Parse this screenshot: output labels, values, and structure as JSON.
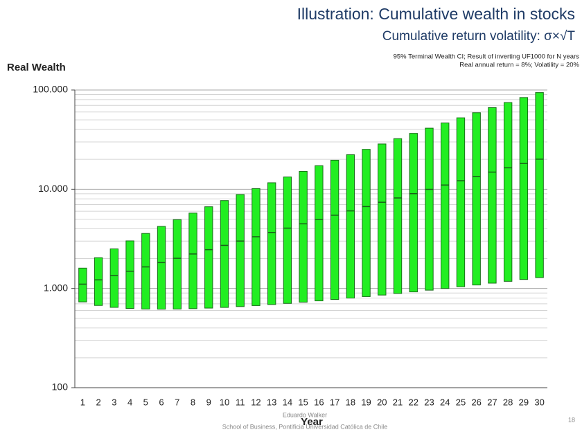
{
  "chart_data": {
    "type": "range_bar",
    "title": "Illustration: Cumulative wealth in stocks",
    "subtitle": "Cumulative return volatility: σ×√T",
    "notes": [
      "95% Terminal Wealth CI; Result of inverting UF1000 for N years",
      "Real annual return = 8%; Volatility = 20%"
    ],
    "ylabel": "Real Wealth",
    "xlabel": "Year",
    "footer": [
      "Eduardo Walker",
      "School of Business, Pontificia Universidad Católica de Chile"
    ],
    "page_number": "18",
    "categories": [
      "1",
      "2",
      "3",
      "4",
      "5",
      "6",
      "7",
      "8",
      "9",
      "10",
      "11",
      "12",
      "13",
      "14",
      "15",
      "16",
      "17",
      "18",
      "19",
      "20",
      "21",
      "22",
      "23",
      "24",
      "25",
      "26",
      "27",
      "28",
      "29",
      "30"
    ],
    "low": [
      732,
      674,
      645,
      629,
      621,
      619,
      621,
      626,
      634,
      644,
      657,
      672,
      689,
      707,
      728,
      750,
      774,
      800,
      828,
      858,
      890,
      924,
      961,
      1000,
      1041,
      1084,
      1131,
      1180,
      1232,
      1288
    ],
    "mid": [
      1105,
      1221,
      1350,
      1492,
      1649,
      1822,
      2014,
      2226,
      2460,
      2718,
      3004,
      3320,
      3669,
      4055,
      4482,
      4953,
      5474,
      6050,
      6686,
      7389,
      8166,
      9025,
      9974,
      11023,
      12182,
      13464,
      14880,
      16445,
      18174,
      20086
    ],
    "high": [
      1603,
      2043,
      2507,
      3016,
      3584,
      4221,
      4938,
      5749,
      6659,
      7690,
      8846,
      10155,
      11624,
      13290,
      15150,
      17255,
      19610,
      22265,
      25250,
      28590,
      32330,
      36550,
      41260,
      46530,
      52460,
      59080,
      66490,
      74740,
      84000,
      94350
    ],
    "color": "#22ee22",
    "edge_color": "#1a6e1a",
    "log_scale": true,
    "grid": true,
    "ylim": [
      100,
      100000
    ],
    "yticks": [
      100,
      {
        "value": 1000,
        "label": "1.000"
      },
      {
        "value": 10000,
        "label": "10.000"
      },
      {
        "value": 100000,
        "label": "100.000"
      }
    ],
    "minor_yticks": [
      200,
      300,
      400,
      500,
      600,
      700,
      800,
      900,
      2000,
      3000,
      4000,
      5000,
      6000,
      7000,
      8000,
      9000,
      20000,
      30000,
      40000,
      50000,
      60000,
      70000,
      80000,
      90000
    ]
  }
}
